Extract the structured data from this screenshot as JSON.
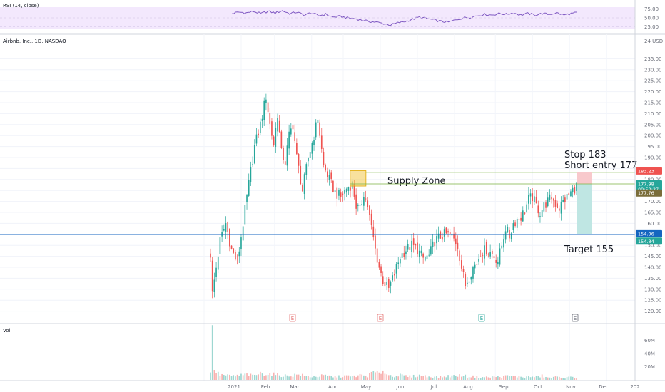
{
  "panes": {
    "rsi_label": "RSI (14, close)",
    "price_label": "Airbnb, Inc., 1D, NASDAQ",
    "vol_label": "Vol",
    "currency": "24 USD"
  },
  "colors": {
    "up": "#26a69a",
    "down": "#ef5350",
    "rsi_band": "#f3e8fd",
    "rsi_line": "#7e57c2",
    "support_line": "#1565c0",
    "zone_fill": "#f2c94c",
    "stop_box": "#f8c9cc",
    "target_box": "#bfe6e3",
    "entry_line": "#7cb342",
    "bg": "#ffffff"
  },
  "rsi_axis": {
    "ticks": [
      "75.00",
      "50.00",
      "25.00"
    ],
    "values": [
      75,
      50,
      25
    ]
  },
  "vol_axis": {
    "ticks": [
      "60M",
      "40M",
      "20M"
    ],
    "values": [
      60,
      40,
      20
    ]
  },
  "x_axis": {
    "labels": [
      "2021",
      "Feb",
      "Mar",
      "Apr",
      "May",
      "Jun",
      "Jul",
      "Aug",
      "Sep",
      "Oct",
      "Nov",
      "Dec",
      "202"
    ]
  },
  "earnings_markers": [
    "E",
    "E",
    "E",
    "E"
  ],
  "annotations": {
    "stop": "Stop 183",
    "entry": "Short entry 177",
    "zone": "Supply Zone",
    "target": "Target 155"
  },
  "price_tags": {
    "stop": "183.23",
    "entry": "177.98",
    "mid": "09:52:37",
    "last": "177.76",
    "support": "154.96",
    "target": "154.84"
  },
  "chart_data": {
    "type": "candlestick",
    "title": "Airbnb, Inc., 1D, NASDAQ",
    "ylim": [
      120,
      240
    ],
    "y_ticks": [
      235,
      230,
      225,
      220,
      215,
      210,
      205,
      200,
      195,
      190,
      185,
      180,
      175,
      170,
      165,
      160,
      155,
      150,
      145,
      140,
      135,
      130,
      125,
      120
    ],
    "y_tick_labels": [
      "235.00",
      "230.00",
      "225.00",
      "220.00",
      "215.00",
      "210.00",
      "205.00",
      "200.00",
      "195.00",
      "190.00",
      "185.00",
      "180.00",
      "175.00",
      "170.00",
      "165.00",
      "160.00",
      "155.00",
      "150.00",
      "145.00",
      "140.00",
      "135.00",
      "130.00",
      "125.00",
      "120.00"
    ],
    "close_path": [
      [
        0,
        146
      ],
      [
        1,
        128
      ],
      [
        3,
        140
      ],
      [
        5,
        152
      ],
      [
        8,
        160
      ],
      [
        11,
        148
      ],
      [
        14,
        142
      ],
      [
        17,
        160
      ],
      [
        20,
        178
      ],
      [
        23,
        195
      ],
      [
        26,
        205
      ],
      [
        29,
        218
      ],
      [
        31,
        205
      ],
      [
        33,
        196
      ],
      [
        35,
        210
      ],
      [
        37,
        192
      ],
      [
        39,
        188
      ],
      [
        41,
        200
      ],
      [
        43,
        205
      ],
      [
        45,
        190
      ],
      [
        48,
        175
      ],
      [
        51,
        190
      ],
      [
        54,
        200
      ],
      [
        56,
        208
      ],
      [
        59,
        186
      ],
      [
        62,
        180
      ],
      [
        65,
        174
      ],
      [
        68,
        172
      ],
      [
        71,
        176
      ],
      [
        74,
        178
      ],
      [
        76,
        168
      ],
      [
        78,
        166
      ],
      [
        80,
        174
      ],
      [
        82,
        168
      ],
      [
        84,
        158
      ],
      [
        86,
        148
      ],
      [
        88,
        140
      ],
      [
        90,
        134
      ],
      [
        93,
        130
      ],
      [
        96,
        137
      ],
      [
        99,
        145
      ],
      [
        102,
        148
      ],
      [
        105,
        150
      ],
      [
        108,
        148
      ],
      [
        111,
        144
      ],
      [
        114,
        145
      ],
      [
        117,
        152
      ],
      [
        120,
        154
      ],
      [
        123,
        155
      ],
      [
        126,
        154
      ],
      [
        129,
        150
      ],
      [
        131,
        140
      ],
      [
        133,
        132
      ],
      [
        135,
        136
      ],
      [
        137,
        140
      ],
      [
        139,
        142
      ],
      [
        141,
        147
      ],
      [
        144,
        148
      ],
      [
        147,
        146
      ],
      [
        150,
        143
      ],
      [
        152,
        150
      ],
      [
        154,
        158
      ],
      [
        156,
        154
      ],
      [
        158,
        160
      ],
      [
        160,
        162
      ],
      [
        162,
        163
      ],
      [
        164,
        166
      ],
      [
        166,
        171
      ],
      [
        168,
        172
      ],
      [
        170,
        168
      ],
      [
        172,
        165
      ],
      [
        174,
        168
      ],
      [
        176,
        170
      ],
      [
        178,
        172
      ],
      [
        180,
        169
      ],
      [
        182,
        167
      ],
      [
        184,
        170
      ],
      [
        186,
        172
      ],
      [
        188,
        174
      ],
      [
        190,
        176
      ],
      [
        191,
        177
      ]
    ],
    "volume_path": [
      [
        0,
        13
      ],
      [
        1,
        65
      ],
      [
        2,
        20
      ],
      [
        3,
        12
      ],
      [
        4,
        9
      ],
      [
        5,
        8
      ],
      [
        7,
        7
      ],
      [
        10,
        6
      ],
      [
        13,
        6
      ],
      [
        16,
        7
      ],
      [
        19,
        8
      ],
      [
        22,
        6
      ],
      [
        25,
        9
      ],
      [
        28,
        10
      ],
      [
        31,
        9
      ],
      [
        34,
        8
      ],
      [
        37,
        7
      ],
      [
        40,
        6
      ],
      [
        43,
        7
      ],
      [
        46,
        8
      ],
      [
        49,
        6
      ],
      [
        52,
        5
      ],
      [
        55,
        5
      ],
      [
        58,
        6
      ],
      [
        61,
        6
      ],
      [
        64,
        5
      ],
      [
        67,
        5
      ],
      [
        70,
        6
      ],
      [
        73,
        5
      ],
      [
        76,
        6
      ],
      [
        79,
        7
      ],
      [
        82,
        6
      ],
      [
        85,
        12
      ],
      [
        88,
        9
      ],
      [
        90,
        16
      ],
      [
        92,
        8
      ],
      [
        95,
        6
      ],
      [
        98,
        7
      ],
      [
        101,
        6
      ],
      [
        104,
        5
      ],
      [
        107,
        6
      ],
      [
        110,
        7
      ],
      [
        113,
        5
      ],
      [
        116,
        5
      ],
      [
        119,
        4
      ],
      [
        122,
        5
      ],
      [
        125,
        6
      ],
      [
        128,
        6
      ],
      [
        131,
        7
      ],
      [
        134,
        5
      ],
      [
        137,
        5
      ],
      [
        140,
        4
      ],
      [
        143,
        4
      ],
      [
        146,
        4
      ],
      [
        149,
        5
      ],
      [
        152,
        4
      ],
      [
        155,
        6
      ],
      [
        158,
        5
      ],
      [
        161,
        5
      ],
      [
        164,
        4
      ],
      [
        167,
        5
      ],
      [
        170,
        4
      ],
      [
        173,
        6
      ],
      [
        176,
        3
      ],
      [
        179,
        4
      ],
      [
        182,
        4
      ],
      [
        185,
        3
      ],
      [
        188,
        4
      ],
      [
        191,
        3
      ]
    ],
    "rsi_path": [
      [
        0,
        62
      ],
      [
        4,
        66
      ],
      [
        8,
        64
      ],
      [
        12,
        68
      ],
      [
        16,
        62
      ],
      [
        20,
        68
      ],
      [
        24,
        64
      ],
      [
        28,
        70
      ],
      [
        32,
        62
      ],
      [
        36,
        66
      ],
      [
        40,
        58
      ],
      [
        44,
        64
      ],
      [
        48,
        56
      ],
      [
        52,
        60
      ],
      [
        56,
        52
      ],
      [
        60,
        54
      ],
      [
        64,
        50
      ],
      [
        68,
        48
      ],
      [
        72,
        44
      ],
      [
        76,
        40
      ],
      [
        80,
        38
      ],
      [
        84,
        34
      ],
      [
        88,
        30
      ],
      [
        92,
        36
      ],
      [
        96,
        40
      ],
      [
        100,
        46
      ],
      [
        104,
        52
      ],
      [
        108,
        48
      ],
      [
        112,
        44
      ],
      [
        116,
        40
      ],
      [
        120,
        38
      ],
      [
        124,
        44
      ],
      [
        128,
        50
      ],
      [
        132,
        52
      ],
      [
        136,
        56
      ],
      [
        140,
        60
      ],
      [
        144,
        58
      ],
      [
        148,
        62
      ],
      [
        152,
        60
      ],
      [
        156,
        64
      ],
      [
        160,
        58
      ],
      [
        164,
        62
      ],
      [
        168,
        58
      ],
      [
        172,
        62
      ],
      [
        176,
        60
      ],
      [
        180,
        64
      ],
      [
        184,
        58
      ],
      [
        188,
        62
      ],
      [
        191,
        64
      ]
    ],
    "levels": {
      "stop": 183.23,
      "entry": 177.98,
      "last": 177.76,
      "support": 154.96,
      "target": 154.84
    },
    "supply_zone": {
      "from_bar": 74,
      "to_bar": 80,
      "low": 177,
      "high": 184
    },
    "earnings_bars": [
      44,
      85,
      141,
      191
    ],
    "month_bars": [
      10,
      30,
      48,
      68,
      85,
      105,
      125,
      145,
      167,
      187,
      207,
      227,
      247
    ]
  }
}
